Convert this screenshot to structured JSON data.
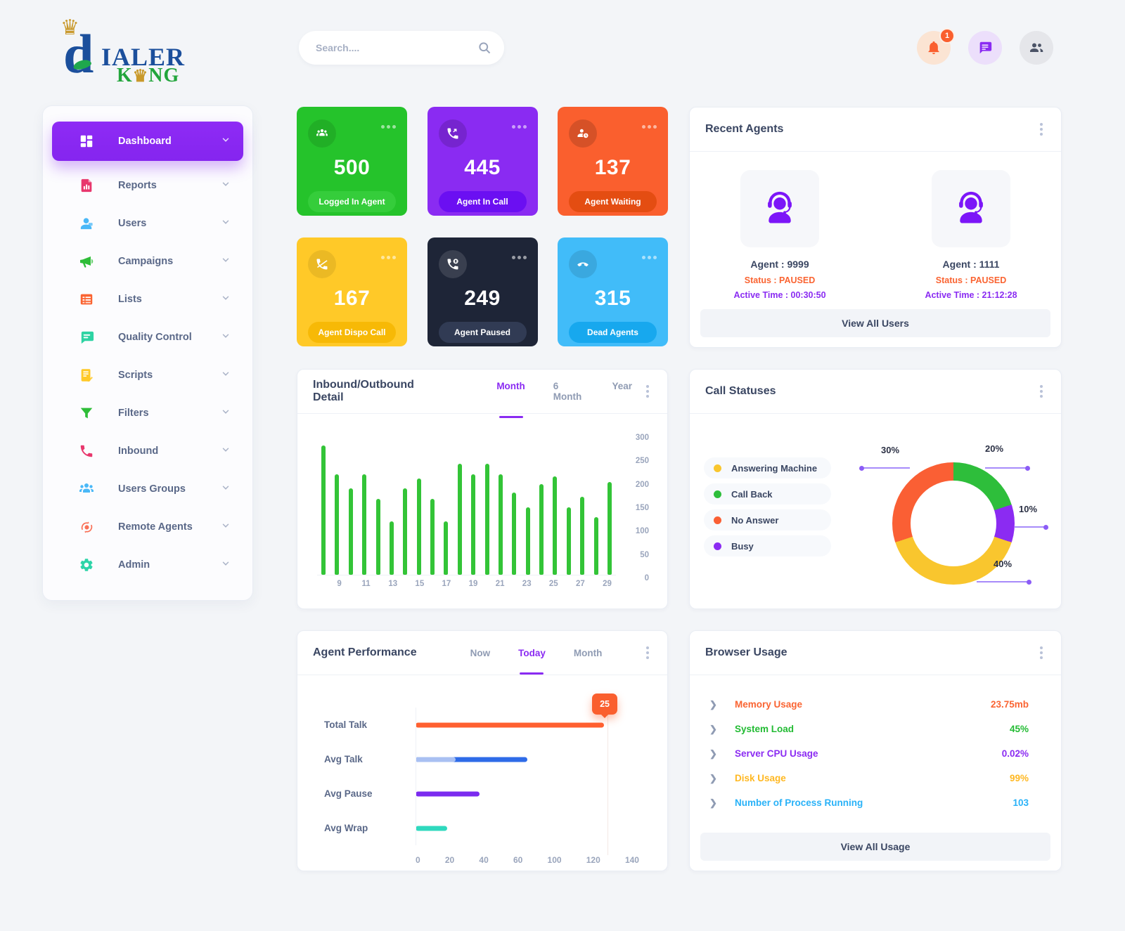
{
  "header": {
    "logo_crown": "♛",
    "logo_d": "d",
    "logo_line1": "IALER",
    "logo_line2_pre": "K",
    "logo_line2_crown": "♛",
    "logo_line2_post": "NG",
    "search_placeholder": "Search....",
    "notification_count": "1"
  },
  "sidebar": {
    "items": [
      {
        "label": "Dashboard",
        "icon": "dashboard-icon",
        "color": "#ffffff",
        "active": true
      },
      {
        "label": "Reports",
        "icon": "reports-icon",
        "color": "#e8376d",
        "active": false
      },
      {
        "label": "Users",
        "icon": "users-icon",
        "color": "#4ab8f7",
        "active": false
      },
      {
        "label": "Campaigns",
        "icon": "campaigns-icon",
        "color": "#2ebd38",
        "active": false
      },
      {
        "label": "Lists",
        "icon": "lists-icon",
        "color": "#fa6432",
        "active": false
      },
      {
        "label": "Quality Control",
        "icon": "quality-control-icon",
        "color": "#2ed3a3",
        "active": false
      },
      {
        "label": "Scripts",
        "icon": "scripts-icon",
        "color": "#ffc928",
        "active": false
      },
      {
        "label": "Filters",
        "icon": "filters-icon",
        "color": "#2ebd38",
        "active": false
      },
      {
        "label": "Inbound",
        "icon": "inbound-icon",
        "color": "#e8376d",
        "active": false
      },
      {
        "label": "Users Groups",
        "icon": "users-groups-icon",
        "color": "#4ab8f7",
        "active": false
      },
      {
        "label": "Remote Agents",
        "icon": "remote-agents-icon",
        "color": "#f97056",
        "active": false
      },
      {
        "label": "Admin",
        "icon": "admin-icon",
        "color": "#2dd4a8",
        "active": false
      }
    ]
  },
  "stat_cards": [
    {
      "value": "500",
      "label": "Logged In Agent",
      "bg": "#25c32b",
      "pill": "#35cd3b",
      "icon": "agents-group-icon",
      "icon_bg": "rgba(0,0,0,0.10)"
    },
    {
      "value": "445",
      "label": "Agent In Call",
      "bg": "#8a2bf2",
      "pill": "#6b0ff2",
      "icon": "phone-incoming-icon",
      "icon_bg": "rgba(0,0,0,0.14)"
    },
    {
      "value": "137",
      "label": "Agent Waiting",
      "bg": "#fa5f2e",
      "pill": "#e44d12",
      "icon": "user-clock-icon",
      "icon_bg": "rgba(0,0,0,0.14)"
    },
    {
      "value": "167",
      "label": "Agent Dispo Call",
      "bg": "#ffc928",
      "pill": "#f7b906",
      "icon": "phone-slash-icon",
      "icon_bg": "rgba(0,0,0,0.08)"
    },
    {
      "value": "249",
      "label": "Agent Paused",
      "bg": "#1e2537",
      "pill": "#313b54",
      "icon": "phone-pause-icon",
      "icon_bg": "rgba(255,255,255,0.12)"
    },
    {
      "value": "315",
      "label": "Dead Agents",
      "bg": "#41bcf9",
      "pill": "#17a8ee",
      "icon": "phone-dead-icon",
      "icon_bg": "rgba(0,0,0,0.10)"
    }
  ],
  "recent_agents": {
    "title": "Recent Agents",
    "agents": [
      {
        "name": "Agent : 9999",
        "status": "Status : PAUSED",
        "active_time": "Active Time : 00:30:50"
      },
      {
        "name": "Agent : 1111",
        "status": "Status : PAUSED",
        "active_time": "Active Time : 21:12:28"
      }
    ],
    "view_all_label": "View All Users"
  },
  "chart_data": [
    {
      "id": "inbound_outbound",
      "type": "bar",
      "title": "Inbound/Outbound Detail",
      "tabs": [
        "Month",
        "6 Month",
        "Year"
      ],
      "active_tab": "Month",
      "x": [
        8,
        9,
        10,
        11,
        12,
        13,
        14,
        15,
        16,
        17,
        18,
        19,
        20,
        21,
        22,
        23,
        24,
        25,
        26,
        27,
        28,
        29
      ],
      "values": [
        315,
        245,
        210,
        245,
        185,
        130,
        210,
        235,
        185,
        130,
        270,
        245,
        270,
        245,
        200,
        165,
        220,
        240,
        165,
        190,
        140,
        225
      ],
      "xtick_labels": [
        "",
        "9",
        "",
        "11",
        "",
        "13",
        "",
        "15",
        "",
        "17",
        "",
        "19",
        "",
        "21",
        "",
        "23",
        "",
        "25",
        "",
        "27",
        "",
        "29"
      ],
      "ytick_labels": [
        "300",
        "250",
        "200",
        "150",
        "100",
        "50",
        "0"
      ],
      "ylim": [
        0,
        325
      ],
      "bar_color": "#33c437",
      "legend_position": "none",
      "grid": false
    },
    {
      "id": "call_statuses",
      "type": "pie",
      "title": "Call Statuses",
      "slices": [
        {
          "label": "Answering Machine",
          "pct": 40,
          "pct_label": "40%",
          "color": "#f9c62e"
        },
        {
          "label": "Call Back",
          "pct": 20,
          "pct_label": "20%",
          "color": "#2ebe3b"
        },
        {
          "label": "No Answer",
          "pct": 30,
          "pct_label": "30%",
          "color": "#fa5f34"
        },
        {
          "label": "Busy",
          "pct": 10,
          "pct_label": "10%",
          "color": "#8b2bf2"
        }
      ],
      "clockwise_from_top": [
        "Call Back",
        "Busy",
        "Answering Machine",
        "No Answer"
      ],
      "legend_position": "left",
      "donut": true
    },
    {
      "id": "agent_performance",
      "type": "bar-horizontal",
      "title": "Agent Performance",
      "tabs": [
        "Now",
        "Today",
        "Month"
      ],
      "active_tab": "Today",
      "categories": [
        "Total Talk",
        "Avg Talk",
        "Avg Pause",
        "Avg Wrap"
      ],
      "values": [
        118,
        70,
        40,
        20
      ],
      "overlay": {
        "category": "Avg Talk",
        "value": 25,
        "color": "#a9c0f2"
      },
      "bar_colors": [
        "#ff6030",
        "#2e6be8",
        "#7b2bef",
        "#2fd9be"
      ],
      "xtick_labels": [
        "0",
        "20",
        "40",
        "60",
        "100",
        "120",
        "140"
      ],
      "xlim": [
        0,
        140
      ],
      "tooltip": {
        "text": "25",
        "at_value": 118,
        "color": "#fa5f2e"
      },
      "gridline_at": 120,
      "grid": false,
      "legend_position": "none"
    }
  ],
  "browser_usage": {
    "title": "Browser Usage",
    "rows": [
      {
        "label": "Memory Usage",
        "value": "23.75mb",
        "color": "#fa6432"
      },
      {
        "label": "System Load",
        "value": "45%",
        "color": "#22bb33"
      },
      {
        "label": "Server CPU Usage",
        "value": "0.02%",
        "color": "#8b2bf2"
      },
      {
        "label": "Disk Usage",
        "value": "99%",
        "color": "#ffb822"
      },
      {
        "label": "Number of Process Running",
        "value": "103",
        "color": "#29b2f8"
      }
    ],
    "view_all_label": "View All Usage"
  }
}
